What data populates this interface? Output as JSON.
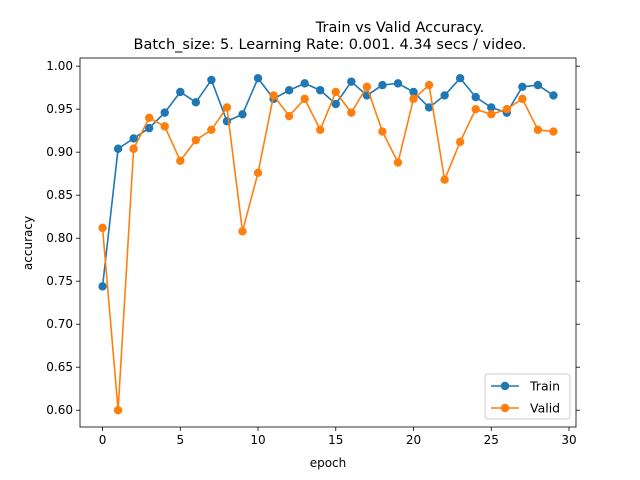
{
  "chart_data": {
    "type": "line",
    "title": "Train vs Valid Accuracy.",
    "subtitle": "Batch_size: 5. Learning Rate: 0.001. 4.34 secs / video.",
    "xlabel": "epoch",
    "ylabel": "accuracy",
    "xlim": [
      -1.45,
      30.45
    ],
    "ylim": [
      0.5805,
      1.0095
    ],
    "xticks": [
      0,
      5,
      10,
      15,
      20,
      25,
      30
    ],
    "yticks": [
      0.6,
      0.65,
      0.7,
      0.75,
      0.8,
      0.85,
      0.9,
      0.95,
      1.0
    ],
    "ytick_labels": [
      "0.60",
      "0.65",
      "0.70",
      "0.75",
      "0.80",
      "0.85",
      "0.90",
      "0.95",
      "1.00"
    ],
    "grid": false,
    "legend_position": "bottom-right",
    "x": [
      0,
      1,
      2,
      3,
      4,
      5,
      6,
      7,
      8,
      9,
      10,
      11,
      12,
      13,
      14,
      15,
      16,
      17,
      18,
      19,
      20,
      21,
      22,
      23,
      24,
      25,
      26,
      27,
      28,
      29
    ],
    "series": [
      {
        "name": "Train",
        "color": "#1f77b4",
        "values": [
          0.744,
          0.904,
          0.916,
          0.928,
          0.946,
          0.97,
          0.958,
          0.984,
          0.936,
          0.944,
          0.986,
          0.962,
          0.972,
          0.98,
          0.972,
          0.956,
          0.982,
          0.966,
          0.978,
          0.98,
          0.97,
          0.952,
          0.966,
          0.986,
          0.964,
          0.952,
          0.946,
          0.976,
          0.978,
          0.966
        ]
      },
      {
        "name": "Valid",
        "color": "#ff7f0e",
        "values": [
          0.812,
          0.6,
          0.904,
          0.94,
          0.93,
          0.89,
          0.914,
          0.926,
          0.952,
          0.808,
          0.876,
          0.966,
          0.942,
          0.962,
          0.926,
          0.97,
          0.946,
          0.976,
          0.924,
          0.888,
          0.962,
          0.978,
          0.868,
          0.912,
          0.95,
          0.944,
          0.95,
          0.962,
          0.926,
          0.924
        ]
      }
    ]
  }
}
